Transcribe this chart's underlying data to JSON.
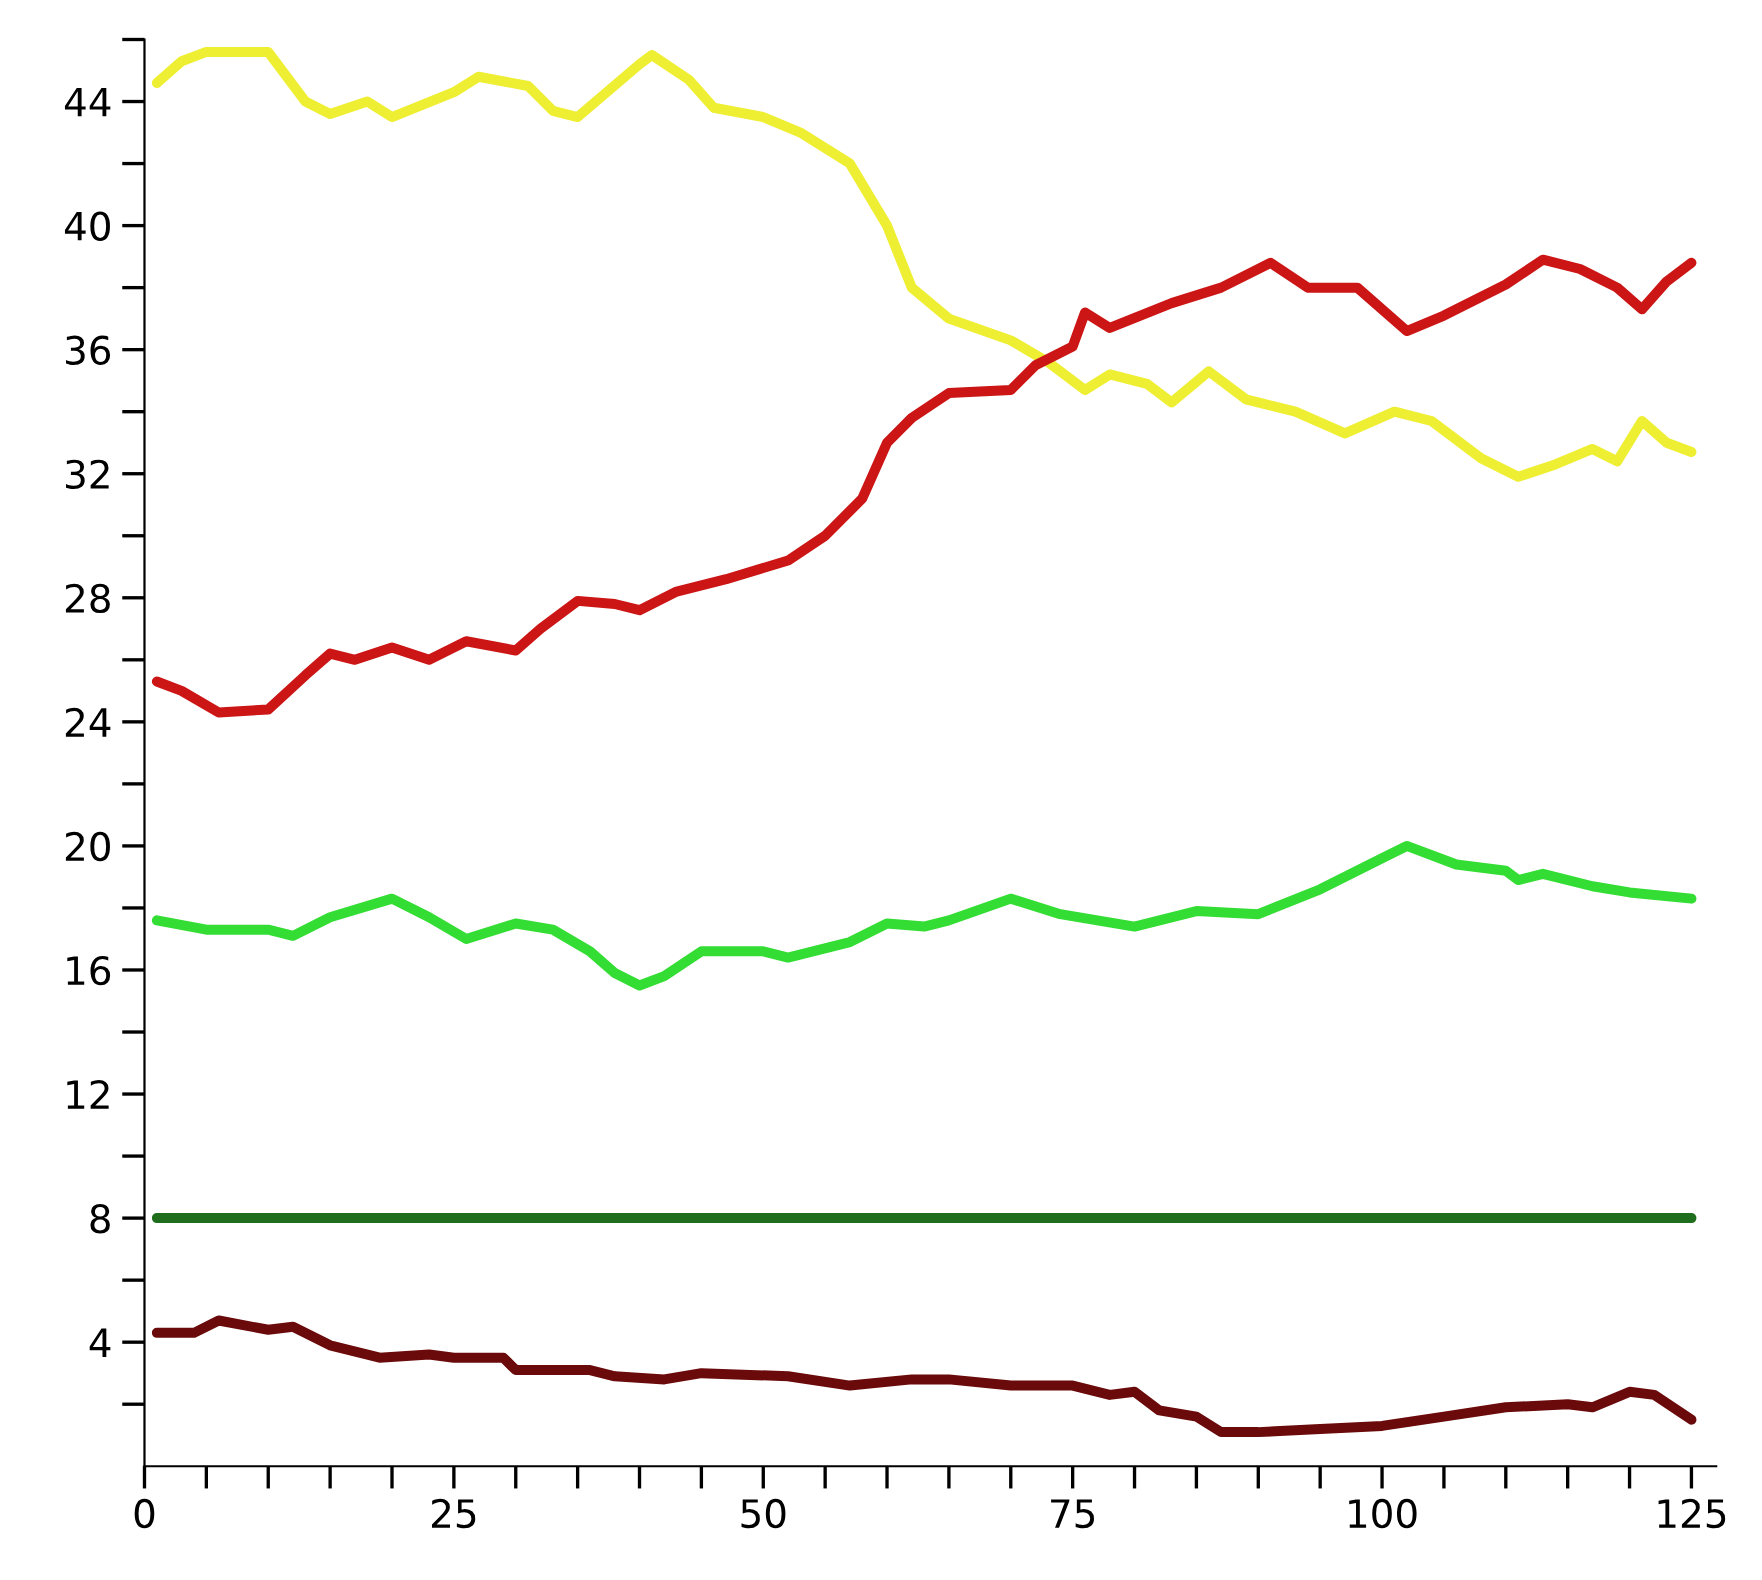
{
  "chart_data": {
    "type": "line",
    "xlim": [
      0,
      127
    ],
    "ylim": [
      0,
      46
    ],
    "xticks": [
      0,
      {
        "value": 5,
        "label": null
      },
      {
        "value": 10,
        "label": null
      },
      {
        "value": 15,
        "label": null
      },
      {
        "value": 20,
        "label": null
      },
      25,
      {
        "value": 30,
        "label": null
      },
      {
        "value": 35,
        "label": null
      },
      {
        "value": 40,
        "label": null
      },
      {
        "value": 45,
        "label": null
      },
      50,
      {
        "value": 55,
        "label": null
      },
      {
        "value": 60,
        "label": null
      },
      {
        "value": 65,
        "label": null
      },
      {
        "value": 70,
        "label": null
      },
      75,
      {
        "value": 80,
        "label": null
      },
      {
        "value": 85,
        "label": null
      },
      {
        "value": 90,
        "label": null
      },
      {
        "value": 95,
        "label": null
      },
      100,
      {
        "value": 105,
        "label": null
      },
      {
        "value": 110,
        "label": null
      },
      {
        "value": 115,
        "label": null
      },
      {
        "value": 120,
        "label": null
      },
      125
    ],
    "yticks": [
      {
        "value": 2,
        "label": null
      },
      4,
      {
        "value": 6,
        "label": null
      },
      8,
      {
        "value": 10,
        "label": null
      },
      12,
      {
        "value": 14,
        "label": null
      },
      16,
      {
        "value": 18,
        "label": null
      },
      20,
      {
        "value": 22,
        "label": null
      },
      24,
      {
        "value": 26,
        "label": null
      },
      28,
      {
        "value": 30,
        "label": null
      },
      32,
      {
        "value": 34,
        "label": null
      },
      36,
      {
        "value": 38,
        "label": null
      },
      40,
      {
        "value": 42,
        "label": null
      },
      44,
      {
        "value": 46,
        "label": null
      }
    ],
    "grid": false,
    "marker": "none",
    "line_style": "solid",
    "series": [
      {
        "color": "#eeee33",
        "x": [
          1,
          3,
          5,
          10,
          13,
          15,
          18,
          20,
          25,
          27,
          31,
          33,
          35,
          40,
          41,
          44,
          46,
          50,
          53,
          57,
          60,
          62,
          65,
          70,
          73,
          76,
          78,
          81,
          83,
          86,
          89,
          93,
          97,
          101,
          104,
          108,
          111,
          114,
          117,
          119,
          121,
          123,
          125
        ],
        "values": [
          44.6,
          45.3,
          45.6,
          45.6,
          44,
          43.6,
          44,
          43.5,
          44.3,
          44.8,
          44.5,
          43.7,
          43.5,
          45.2,
          45.5,
          44.7,
          43.8,
          43.5,
          43,
          42,
          40,
          38,
          37,
          36.3,
          35.6,
          34.7,
          35.2,
          34.9,
          34.3,
          35.3,
          34.4,
          34,
          33.3,
          34,
          33.7,
          32.5,
          31.9,
          32.3,
          32.8,
          32.4,
          33.7,
          33,
          32.7
        ]
      },
      {
        "color": "#cc1515",
        "x": [
          1,
          3,
          6,
          10,
          13,
          15,
          17,
          20,
          23,
          26,
          30,
          32,
          35,
          38,
          40,
          43,
          47,
          52,
          55,
          58,
          60,
          62,
          65,
          70,
          72,
          75,
          76,
          78,
          83,
          87,
          91,
          94,
          98,
          102,
          105,
          110,
          113,
          116,
          119,
          121,
          123,
          125
        ],
        "values": [
          25.3,
          25,
          24.3,
          24.4,
          25.5,
          26.2,
          26,
          26.4,
          26,
          26.6,
          26.3,
          27,
          27.9,
          27.8,
          27.6,
          28.2,
          28.6,
          29.2,
          30,
          31.2,
          33,
          33.8,
          34.6,
          34.7,
          35.5,
          36.1,
          37.2,
          36.7,
          37.5,
          38,
          38.8,
          38,
          38,
          36.6,
          37.1,
          38.1,
          38.9,
          38.6,
          38,
          37.3,
          38.2,
          38.8
        ]
      },
      {
        "color": "#33dd33",
        "x": [
          1,
          5,
          10,
          12,
          15,
          20,
          23,
          26,
          30,
          33,
          36,
          38,
          40,
          42,
          45,
          50,
          52,
          57,
          60,
          63,
          65,
          70,
          74,
          80,
          85,
          90,
          95,
          100,
          102,
          106,
          110,
          111,
          113,
          117,
          120,
          125
        ],
        "values": [
          17.6,
          17.3,
          17.3,
          17.1,
          17.7,
          18.3,
          17.7,
          17,
          17.5,
          17.3,
          16.6,
          15.9,
          15.5,
          15.8,
          16.6,
          16.6,
          16.4,
          16.9,
          17.5,
          17.4,
          17.6,
          18.3,
          17.8,
          17.4,
          17.9,
          17.8,
          18.6,
          19.6,
          20,
          19.4,
          19.2,
          18.9,
          19.1,
          18.7,
          18.5,
          18.3
        ]
      },
      {
        "color": "#1e6e1e",
        "x": [
          1,
          125
        ],
        "values": [
          8,
          8
        ]
      },
      {
        "color": "#6b0a0a",
        "x": [
          1,
          4,
          6,
          10,
          12,
          15,
          19,
          23,
          25,
          29,
          30,
          36,
          38,
          42,
          45,
          52,
          57,
          62,
          65,
          70,
          75,
          78,
          80,
          82,
          85,
          87,
          90,
          95,
          100,
          105,
          110,
          115,
          117,
          120,
          122,
          125
        ],
        "values": [
          4.3,
          4.3,
          4.7,
          4.4,
          4.5,
          3.9,
          3.5,
          3.6,
          3.5,
          3.5,
          3.1,
          3.1,
          2.9,
          2.8,
          3.0,
          2.9,
          2.6,
          2.8,
          2.8,
          2.6,
          2.6,
          2.3,
          2.4,
          1.8,
          1.6,
          1.1,
          1.1,
          1.2,
          1.3,
          1.6,
          1.9,
          2.0,
          1.9,
          2.4,
          2.3,
          1.5
        ]
      }
    ]
  }
}
